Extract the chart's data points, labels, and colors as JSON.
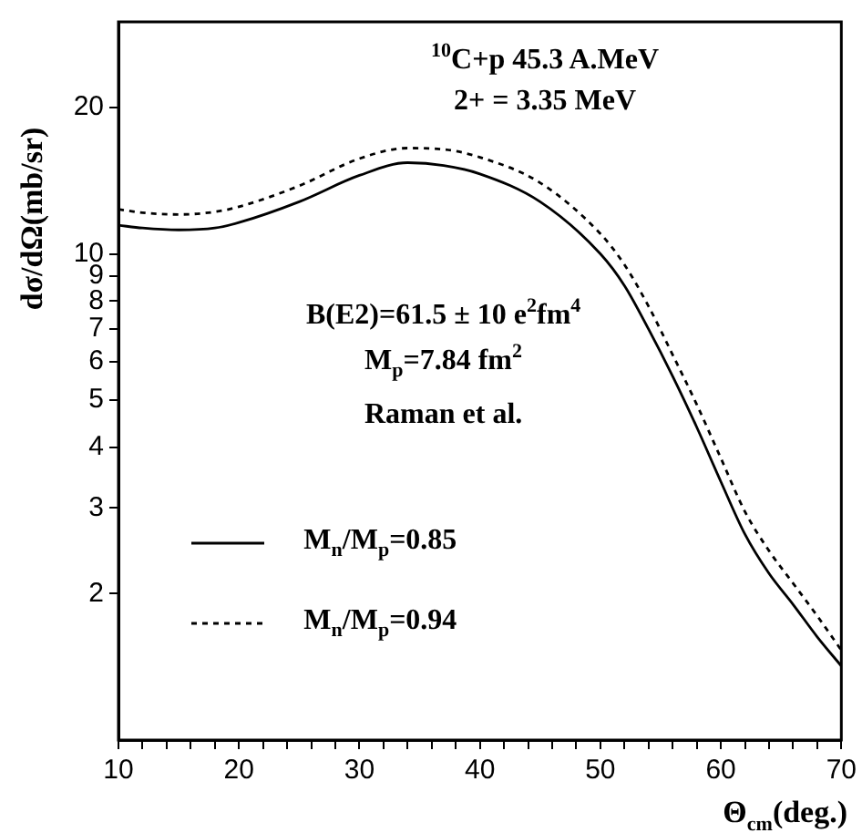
{
  "chart_data": {
    "type": "line",
    "xlabel": "Θ$_{cm}$(deg.)",
    "ylabel": "dσ/dΩ(mb/sr)",
    "annotations": [
      "$^{10}$C+p 45.3 A.MeV",
      "2+ = 3.35 MeV",
      "B(E2)=61.5 ± 10 e$^{2}$fm$^{4}$",
      "M$_{p}$=7.84 fm$^{2}$",
      "Raman et al."
    ],
    "x": [
      10,
      12,
      15,
      18,
      20,
      25,
      30,
      34,
      37,
      40,
      45,
      50,
      52,
      54,
      56,
      58,
      60,
      62,
      64,
      66,
      68,
      70
    ],
    "series": [
      {
        "name": "M$_{n}$/M$_{p}$=0.85",
        "color": "#000000",
        "line_style": "solid",
        "values": [
          11.45,
          11.3,
          11.2,
          11.3,
          11.6,
          12.8,
          14.5,
          15.4,
          15.2,
          14.6,
          12.8,
          10.0,
          8.6,
          7.0,
          5.6,
          4.4,
          3.4,
          2.65,
          2.2,
          1.9,
          1.63,
          1.42
        ]
      },
      {
        "name": "M$_{n}$/M$_{p}$=0.94",
        "color": "#000000",
        "line_style": "dotted",
        "values": [
          12.35,
          12.15,
          12.05,
          12.2,
          12.5,
          13.8,
          15.7,
          16.5,
          16.4,
          15.8,
          14.0,
          11.0,
          9.5,
          7.8,
          6.2,
          4.9,
          3.8,
          2.95,
          2.45,
          2.1,
          1.8,
          1.53
        ]
      }
    ],
    "xlim": [
      10,
      70
    ],
    "ylim": [
      1,
      30
    ],
    "log": "y",
    "grid": false,
    "legend": "bottom left",
    "marker": "none",
    "xticks": [
      10,
      {
        "value": 12,
        "label": null
      },
      {
        "value": 14,
        "label": null
      },
      {
        "value": 16,
        "label": null
      },
      {
        "value": 18,
        "label": null
      },
      20,
      {
        "value": 22,
        "label": null
      },
      {
        "value": 24,
        "label": null
      },
      {
        "value": 26,
        "label": null
      },
      {
        "value": 28,
        "label": null
      },
      30,
      {
        "value": 32,
        "label": null
      },
      {
        "value": 34,
        "label": null
      },
      {
        "value": 36,
        "label": null
      },
      {
        "value": 38,
        "label": null
      },
      40,
      {
        "value": 42,
        "label": null
      },
      {
        "value": 44,
        "label": null
      },
      {
        "value": 46,
        "label": null
      },
      {
        "value": 48,
        "label": null
      },
      50,
      {
        "value": 52,
        "label": null
      },
      {
        "value": 54,
        "label": null
      },
      {
        "value": 56,
        "label": null
      },
      {
        "value": 58,
        "label": null
      },
      60,
      {
        "value": 62,
        "label": null
      },
      {
        "value": 64,
        "label": null
      },
      {
        "value": 66,
        "label": null
      },
      {
        "value": 68,
        "label": null
      },
      70
    ],
    "yticks": [
      2,
      3,
      4,
      5,
      6,
      7,
      8,
      9,
      10,
      20
    ]
  }
}
